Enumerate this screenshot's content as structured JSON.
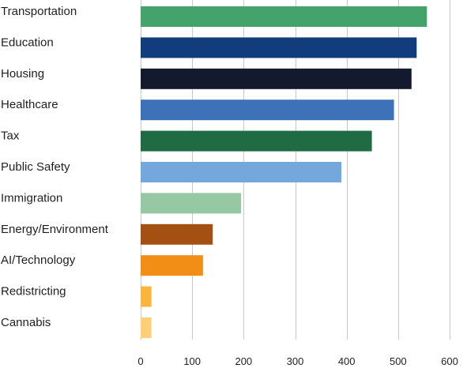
{
  "chart_data": {
    "type": "bar",
    "orientation": "horizontal",
    "title": "",
    "xlabel": "",
    "ylabel": "",
    "categories": [
      "Transportation",
      "Education",
      "Housing",
      "Healthcare",
      "Tax",
      "Public Safety",
      "Immigration",
      "Energy/Environment",
      "AI/Technology",
      "Redistricting",
      "Cannabis"
    ],
    "values": [
      556,
      536,
      526,
      492,
      449,
      390,
      195,
      140,
      121,
      21,
      21
    ],
    "colors": [
      "#43a36b",
      "#123d7d",
      "#141a2e",
      "#3e72b8",
      "#1e6b44",
      "#74a8dc",
      "#96c9a3",
      "#a35012",
      "#f28e16",
      "#fbb53c",
      "#fdd077"
    ],
    "xlim": [
      0,
      600
    ],
    "xticks": [
      0,
      100,
      200,
      300,
      400,
      500,
      600
    ],
    "grid": "vertical",
    "legend": "none"
  }
}
